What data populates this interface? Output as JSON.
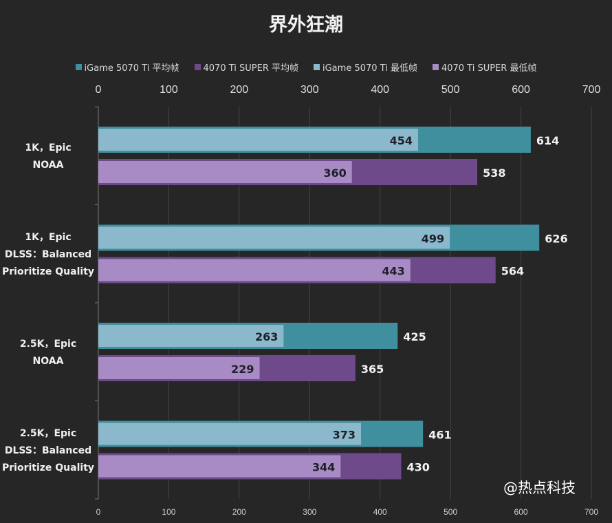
{
  "chart_data": {
    "type": "bar",
    "orientation": "horizontal",
    "title": "界外狂潮",
    "categories": [
      [
        "1K，Epic",
        "NOAA"
      ],
      [
        "1K，Epic",
        "DLSS：Balanced",
        "Prioritize Quality"
      ],
      [
        "2.5K，Epic",
        "NOAA"
      ],
      [
        "2.5K，Epic",
        "DLSS：Balanced",
        "Prioritize Quality"
      ]
    ],
    "series": [
      {
        "name": "iGame 5070 Ti 平均帧",
        "color": "#3f8f9f",
        "values": [
          614,
          626,
          425,
          461
        ]
      },
      {
        "name": "4070 Ti SUPER 平均帧",
        "color": "#6e4a8b",
        "values": [
          538,
          564,
          365,
          430
        ]
      },
      {
        "name": "iGame 5070 Ti 最低帧",
        "color": "#8bb8cb",
        "values": [
          454,
          499,
          263,
          373
        ]
      },
      {
        "name": "4070 Ti SUPER 最低帧",
        "color": "#a88bc4",
        "values": [
          360,
          443,
          229,
          344
        ]
      }
    ],
    "xlim": [
      0,
      700
    ],
    "xticks": [
      "0",
      "100",
      "200",
      "300",
      "400",
      "500",
      "600",
      "700"
    ],
    "grid": true,
    "legend_position": "top"
  },
  "watermark": "@热点科技"
}
